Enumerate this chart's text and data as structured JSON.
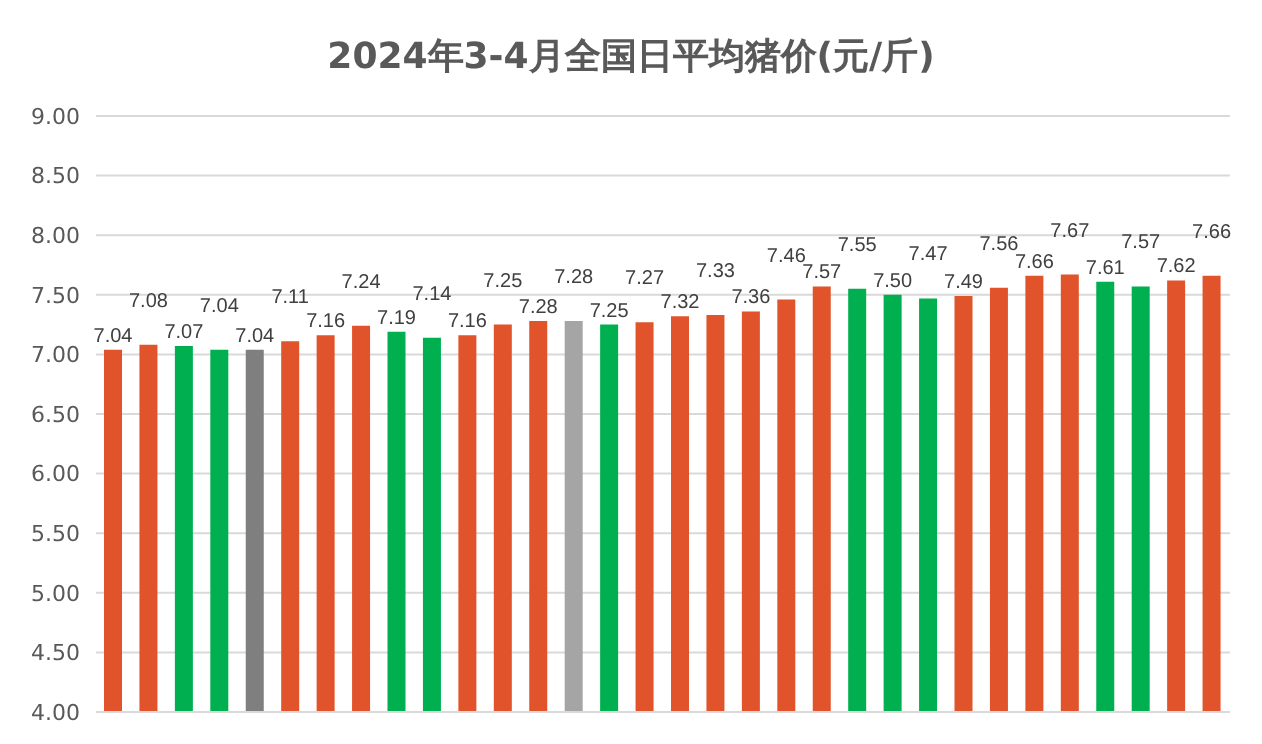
{
  "chart_data": {
    "type": "bar",
    "title": "2024年3-4月全国日平均猪价(元/斤)",
    "categories": [
      null,
      null,
      null,
      null,
      null,
      null,
      null,
      null,
      null,
      null,
      null,
      null,
      null,
      null,
      null,
      null,
      null,
      null,
      null,
      null,
      null,
      null,
      null,
      null,
      null,
      null,
      null,
      null,
      null,
      null,
      null,
      null
    ],
    "values": [
      7.04,
      7.08,
      7.07,
      7.04,
      7.04,
      7.11,
      7.16,
      7.24,
      7.19,
      7.14,
      7.16,
      7.25,
      7.28,
      7.28,
      7.25,
      7.27,
      7.32,
      7.33,
      7.36,
      7.46,
      7.57,
      7.55,
      7.5,
      7.47,
      7.49,
      7.56,
      7.66,
      7.67,
      7.61,
      7.57,
      7.62,
      7.66
    ],
    "colors": [
      "#e0532b",
      "#e0532b",
      "#00b050",
      "#00b050",
      "#7f7f7f",
      "#e0532b",
      "#e0532b",
      "#e0532b",
      "#00b050",
      "#00b050",
      "#e0532b",
      "#e0532b",
      "#e0532b",
      "#a5a5a5",
      "#00b050",
      "#e0532b",
      "#e0532b",
      "#e0532b",
      "#e0532b",
      "#e0532b",
      "#e0532b",
      "#00b050",
      "#00b050",
      "#00b050",
      "#e0532b",
      "#e0532b",
      "#e0532b",
      "#e0532b",
      "#00b050",
      "#00b050",
      "#e0532b",
      "#e0532b"
    ],
    "ylim": [
      4,
      9
    ],
    "yticks": [
      {
        "value": 4,
        "label": "4.00"
      },
      {
        "value": 4.5,
        "label": "4.50"
      },
      {
        "value": 5,
        "label": "5.00"
      },
      {
        "value": 5.5,
        "label": "5.50"
      },
      {
        "value": 6,
        "label": "6.00"
      },
      {
        "value": 6.5,
        "label": "6.50"
      },
      {
        "value": 7,
        "label": "7.00"
      },
      {
        "value": 7.5,
        "label": "7.50"
      },
      {
        "value": 8,
        "label": "8.00"
      },
      {
        "value": 8.5,
        "label": "8.50"
      },
      {
        "value": 9,
        "label": "9.00"
      }
    ],
    "value_labels": [
      "7.04",
      "7.08",
      "7.07",
      "7.04",
      "7.04",
      "7.11",
      "7.16",
      "7.24",
      "7.19",
      "7.14",
      "7.16",
      "7.25",
      "7.28",
      "7.28",
      "7.25",
      "7.27",
      "7.32",
      "7.33",
      "7.36",
      "7.46",
      "7.57",
      "7.55",
      "7.50",
      "7.47",
      "7.49",
      "7.56",
      "7.66",
      "7.67",
      "7.61",
      "7.57",
      "7.62",
      "7.66"
    ],
    "grid": "y"
  }
}
